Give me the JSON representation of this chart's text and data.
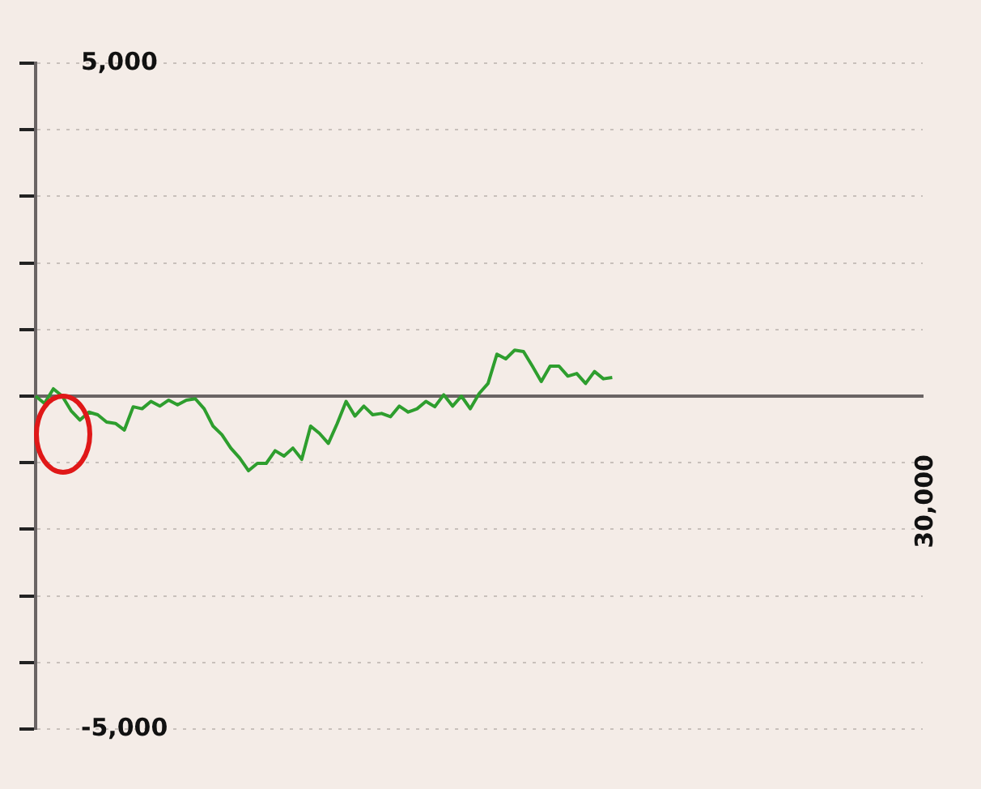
{
  "chart_data": {
    "type": "line",
    "categories": [
      null,
      null,
      null,
      null,
      null,
      null,
      null,
      null,
      null,
      null,
      null,
      null,
      null,
      null,
      null,
      null,
      null,
      null,
      null,
      null,
      null,
      null,
      null,
      null,
      null,
      null,
      null,
      null,
      null,
      null,
      null,
      null,
      null,
      null,
      null,
      null,
      null,
      null,
      null,
      null,
      null,
      null,
      null,
      null,
      null,
      null,
      null,
      null,
      null,
      null,
      null,
      null,
      null,
      null,
      null,
      null,
      null,
      null,
      null,
      null,
      null,
      null,
      null,
      null,
      null,
      null,
      null,
      null,
      null,
      null,
      null,
      null,
      null,
      null,
      null,
      null,
      null,
      null,
      null,
      null,
      null,
      null,
      null,
      null,
      null,
      null,
      null,
      null,
      null,
      null,
      null,
      null,
      null,
      null,
      null,
      null,
      null,
      null,
      null,
      null,
      null
    ],
    "series": [
      {
        "color": "#2e9e2e",
        "values": [
          0,
          -110,
          110,
          0,
          -220,
          -360,
          -240,
          -280,
          -390,
          -410,
          -510,
          -160,
          -190,
          -80,
          -150,
          -60,
          -130,
          -60,
          -40,
          -190,
          -450,
          -580,
          -780,
          -930,
          -1120,
          -1010,
          -1010,
          -820,
          -900,
          -780,
          -950,
          -450,
          -560,
          -710,
          -410,
          -80,
          -300,
          -150,
          -280,
          -260,
          -310,
          -150,
          -240,
          -190,
          -80,
          -160,
          20,
          -150,
          0,
          -190,
          40,
          190,
          630,
          560,
          690,
          670,
          450,
          220,
          450,
          450,
          300,
          340,
          190,
          370,
          260,
          280,
          null,
          null,
          null,
          null,
          null,
          null,
          null,
          null,
          null,
          null,
          null,
          null,
          null,
          null,
          null,
          null,
          null,
          null,
          null,
          null,
          null,
          null,
          null,
          null,
          null,
          null,
          null,
          null,
          null,
          null,
          null,
          null,
          null,
          null,
          null
        ]
      }
    ],
    "ylim": [
      -5000,
      5000
    ],
    "yticks": [
      {
        "value": -5000,
        "label": "-5,000"
      },
      {
        "value": -4000,
        "label": null
      },
      {
        "value": -3000,
        "label": null
      },
      {
        "value": -2000,
        "label": null
      },
      {
        "value": -1000,
        "label": null
      },
      {
        "value": 0,
        "label": null
      },
      {
        "value": 1000,
        "label": null
      },
      {
        "value": 2000,
        "label": null
      },
      {
        "value": 3000,
        "label": null
      },
      {
        "value": 4000,
        "label": null
      },
      {
        "value": 5000,
        "label": "5,000"
      }
    ],
    "annotations": [
      "30,000"
    ],
    "grid": "y",
    "marker": "none"
  }
}
